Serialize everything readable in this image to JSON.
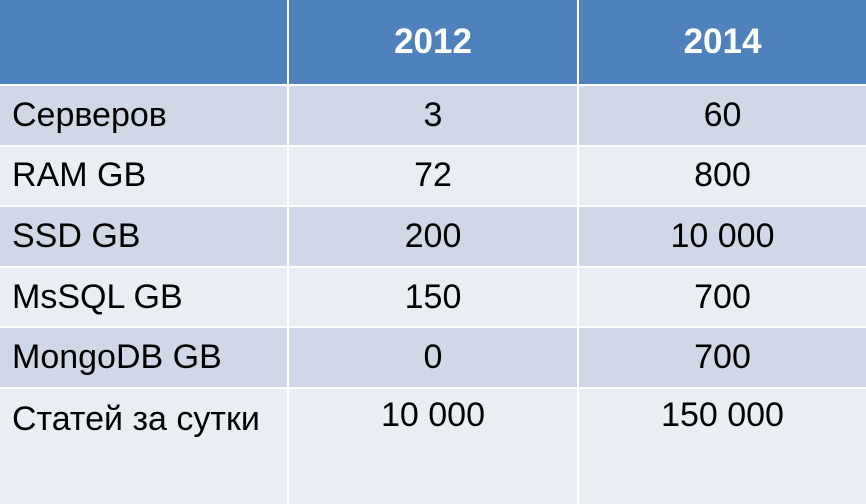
{
  "table": {
    "headers": [
      "",
      "2012",
      "2014"
    ],
    "rows": [
      {
        "label": "Серверов",
        "v2012": "3",
        "v2014": "60"
      },
      {
        "label": "RAM GB",
        "v2012": "72",
        "v2014": "800"
      },
      {
        "label": "SSD GB",
        "v2012": "200",
        "v2014": "10 000"
      },
      {
        "label": "MsSQL GB",
        "v2012": "150",
        "v2014": "700"
      },
      {
        "label": "MongoDB GB",
        "v2012": "0",
        "v2014": "700"
      },
      {
        "label": "Статей за сутки",
        "v2012": "10 000",
        "v2014": "150 000"
      }
    ]
  },
  "colors": {
    "header_bg": "#4f81bd",
    "row_odd_bg": "#d0d8e8",
    "row_even_bg": "#e9edf4"
  }
}
